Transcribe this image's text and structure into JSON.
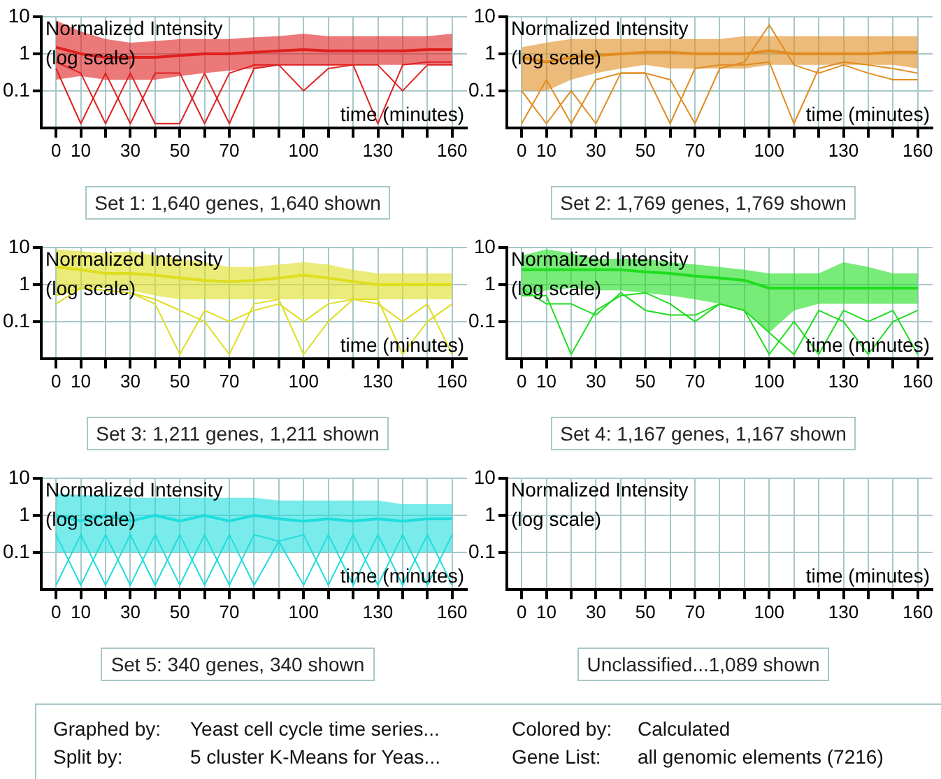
{
  "chart_data": [
    {
      "type": "line",
      "title": "Set 1: 1,640 genes, 1,640 shown",
      "xlabel": "time (minutes)",
      "ylabel": "Normalized Intensity (log scale)",
      "log": true,
      "grid": true,
      "x": [
        0,
        10,
        20,
        30,
        40,
        50,
        60,
        70,
        80,
        90,
        100,
        110,
        120,
        130,
        140,
        150,
        160
      ],
      "xlim": [
        -6,
        166
      ],
      "xticks": [
        0,
        10,
        {
          "value": 20,
          "label": null
        },
        30,
        {
          "value": 40,
          "label": null
        },
        50,
        {
          "value": 60,
          "label": null
        },
        70,
        {
          "value": 80,
          "label": null
        },
        {
          "value": 90,
          "label": null
        },
        100,
        {
          "value": 110,
          "label": null
        },
        {
          "value": 120,
          "label": null
        },
        130,
        {
          "value": 140,
          "label": null
        },
        {
          "value": 150,
          "label": null
        },
        160
      ],
      "ylim": [
        0.01,
        10
      ],
      "yticks": [
        0.1,
        1,
        10
      ],
      "series": [
        {
          "color": "#e02020",
          "values": [
            1.5,
            1,
            0.8,
            0.8,
            0.8,
            0.9,
            1,
            1,
            1.1,
            1.2,
            1.3,
            1.2,
            1.2,
            1.2,
            1.2,
            1.3,
            1.3
          ],
          "lower": [
            0.2,
            0.25,
            0.2,
            0.2,
            0.2,
            0.25,
            0.3,
            0.35,
            0.4,
            0.5,
            0.5,
            0.5,
            0.5,
            0.5,
            0.5,
            0.5,
            0.5
          ],
          "upper": [
            8,
            4,
            2.5,
            2,
            2.2,
            2.5,
            2.5,
            2.5,
            2.8,
            3,
            3.5,
            3,
            3,
            3,
            3,
            3,
            3.5
          ]
        },
        {
          "color": "#e02020",
          "values": [
            0.4,
            0.013,
            0.3,
            0.013,
            0.3,
            0.3,
            0.013,
            0.3,
            0.5,
            0.5,
            0.5,
            0.5,
            0.5,
            0.013,
            0.5,
            0.6,
            0.6
          ]
        },
        {
          "color": "#e02020",
          "values": [
            0.6,
            0.3,
            0.013,
            0.3,
            0.013,
            0.013,
            0.3,
            0.013,
            0.4,
            0.5,
            0.1,
            0.4,
            0.5,
            0.5,
            0.1,
            0.5,
            0.5
          ]
        }
      ]
    },
    {
      "type": "line",
      "title": "Set 2: 1,769 genes, 1,769 shown",
      "xlabel": "time (minutes)",
      "ylabel": "Normalized Intensity (log scale)",
      "log": true,
      "grid": true,
      "x": [
        0,
        10,
        20,
        30,
        40,
        50,
        60,
        70,
        80,
        90,
        100,
        110,
        120,
        130,
        140,
        150,
        160
      ],
      "xlim": [
        -6,
        166
      ],
      "xticks": [
        0,
        10,
        {
          "value": 20,
          "label": null
        },
        30,
        {
          "value": 40,
          "label": null
        },
        50,
        {
          "value": 60,
          "label": null
        },
        70,
        {
          "value": 80,
          "label": null
        },
        {
          "value": 90,
          "label": null
        },
        100,
        {
          "value": 110,
          "label": null
        },
        {
          "value": 120,
          "label": null
        },
        130,
        {
          "value": 140,
          "label": null
        },
        {
          "value": 150,
          "label": null
        },
        160
      ],
      "ylim": [
        0.01,
        10
      ],
      "yticks": [
        0.1,
        1,
        10
      ],
      "series": [
        {
          "color": "#e08c20",
          "values": [
            0.8,
            0.6,
            0.8,
            0.9,
            1,
            1.1,
            1.1,
            1,
            1,
            1,
            1.2,
            1,
            1,
            1,
            1,
            1.1,
            1.1
          ],
          "lower": [
            0.1,
            0.1,
            0.2,
            0.3,
            0.4,
            0.5,
            0.4,
            0.4,
            0.4,
            0.4,
            0.5,
            0.5,
            0.5,
            0.5,
            0.5,
            0.5,
            0.4
          ],
          "upper": [
            1.5,
            2,
            2.5,
            2.5,
            2.5,
            2.5,
            2.5,
            2.5,
            2.5,
            3,
            3,
            3,
            3,
            3,
            3,
            3,
            3
          ]
        },
        {
          "color": "#e08c20",
          "values": [
            0.013,
            0.2,
            0.013,
            0.2,
            0.3,
            0.3,
            0.013,
            0.4,
            0.5,
            0.5,
            0.6,
            0.013,
            0.4,
            0.6,
            0.5,
            0.4,
            0.3
          ]
        },
        {
          "color": "#e08c20",
          "values": [
            0.1,
            0.013,
            0.1,
            0.013,
            0.3,
            0.3,
            0.2,
            0.013,
            0.4,
            0.6,
            6,
            0.5,
            0.3,
            0.5,
            0.3,
            0.2,
            0.2
          ]
        }
      ]
    },
    {
      "type": "line",
      "title": "Set 3: 1,211 genes, 1,211 shown",
      "xlabel": "time (minutes)",
      "ylabel": "Normalized Intensity (log scale)",
      "log": true,
      "grid": true,
      "x": [
        0,
        10,
        20,
        30,
        40,
        50,
        60,
        70,
        80,
        90,
        100,
        110,
        120,
        130,
        140,
        150,
        160
      ],
      "xlim": [
        -6,
        166
      ],
      "xticks": [
        0,
        10,
        {
          "value": 20,
          "label": null
        },
        30,
        {
          "value": 40,
          "label": null
        },
        50,
        {
          "value": 60,
          "label": null
        },
        70,
        {
          "value": 80,
          "label": null
        },
        {
          "value": 90,
          "label": null
        },
        100,
        {
          "value": 110,
          "label": null
        },
        {
          "value": 120,
          "label": null
        },
        130,
        {
          "value": 140,
          "label": null
        },
        {
          "value": 150,
          "label": null
        },
        160
      ],
      "ylim": [
        0.01,
        10
      ],
      "yticks": [
        0.1,
        1,
        10
      ],
      "series": [
        {
          "color": "#dede20",
          "values": [
            3,
            2.5,
            2,
            2,
            1.8,
            1.5,
            1.3,
            1.2,
            1.3,
            1.5,
            1.8,
            1.5,
            1.2,
            1,
            1,
            1,
            1
          ],
          "lower": [
            0.5,
            0.8,
            0.8,
            0.7,
            0.5,
            0.4,
            0.4,
            0.4,
            0.4,
            0.4,
            0.4,
            0.4,
            0.4,
            0.4,
            0.4,
            0.4,
            0.4
          ],
          "upper": [
            9,
            8,
            7,
            8,
            6,
            5,
            4,
            3,
            3,
            3.5,
            4,
            3.5,
            2.5,
            2,
            2,
            2,
            2
          ]
        },
        {
          "color": "#dede20",
          "values": [
            0.3,
            0.8,
            0.7,
            0.6,
            0.3,
            0.013,
            0.2,
            0.1,
            0.2,
            0.3,
            0.1,
            0.3,
            0.4,
            0.3,
            0.1,
            0.3,
            0.013
          ]
        },
        {
          "color": "#dede20",
          "values": [
            0.5,
            0.8,
            0.7,
            0.6,
            0.4,
            0.2,
            0.1,
            0.013,
            0.3,
            0.4,
            0.013,
            0.1,
            0.4,
            0.4,
            0.013,
            0.1,
            0.3
          ]
        }
      ]
    },
    {
      "type": "line",
      "title": "Set 4: 1,167 genes, 1,167 shown",
      "xlabel": "time (minutes)",
      "ylabel": "Normalized Intensity (log scale)",
      "log": true,
      "grid": true,
      "x": [
        0,
        10,
        20,
        30,
        40,
        50,
        60,
        70,
        80,
        90,
        100,
        110,
        120,
        130,
        140,
        150,
        160
      ],
      "xlim": [
        -6,
        166
      ],
      "xticks": [
        0,
        10,
        {
          "value": 20,
          "label": null
        },
        30,
        {
          "value": 40,
          "label": null
        },
        50,
        {
          "value": 60,
          "label": null
        },
        70,
        {
          "value": 80,
          "label": null
        },
        {
          "value": 90,
          "label": null
        },
        100,
        {
          "value": 110,
          "label": null
        },
        {
          "value": 120,
          "label": null
        },
        130,
        {
          "value": 140,
          "label": null
        },
        {
          "value": 150,
          "label": null
        },
        160
      ],
      "ylim": [
        0.01,
        10
      ],
      "yticks": [
        0.1,
        1,
        10
      ],
      "series": [
        {
          "color": "#20dd20",
          "values": [
            2.5,
            2.5,
            2.5,
            2.5,
            2.5,
            2.2,
            2,
            1.7,
            1.5,
            1.3,
            0.8,
            0.8,
            0.8,
            0.8,
            0.8,
            0.8,
            0.8
          ],
          "lower": [
            0.5,
            0.7,
            0.8,
            0.7,
            0.7,
            0.6,
            0.5,
            0.4,
            0.3,
            0.2,
            0.05,
            0.2,
            0.3,
            0.3,
            0.3,
            0.3,
            0.3
          ],
          "upper": [
            6,
            9,
            7,
            5,
            5,
            5,
            4,
            3.5,
            3,
            2.5,
            2,
            2,
            2,
            4,
            3,
            2,
            2
          ]
        },
        {
          "color": "#20dd20",
          "values": [
            0.5,
            0.5,
            0.013,
            0.2,
            0.5,
            0.6,
            0.3,
            0.1,
            0.3,
            0.2,
            0.013,
            0.1,
            0.013,
            0.2,
            0.1,
            0.2,
            0.013
          ]
        },
        {
          "color": "#20dd20",
          "values": [
            0.8,
            0.3,
            0.3,
            0.15,
            0.6,
            0.2,
            0.15,
            0.15,
            0.3,
            0.2,
            0.05,
            0.013,
            0.2,
            0.1,
            0.013,
            0.1,
            0.2
          ]
        }
      ]
    },
    {
      "type": "line",
      "title": "Set 5: 340 genes, 340 shown",
      "xlabel": "time (minutes)",
      "ylabel": "Normalized Intensity (log scale)",
      "log": true,
      "grid": true,
      "x": [
        0,
        10,
        20,
        30,
        40,
        50,
        60,
        70,
        80,
        90,
        100,
        110,
        120,
        130,
        140,
        150,
        160
      ],
      "xlim": [
        -6,
        166
      ],
      "xticks": [
        0,
        10,
        {
          "value": 20,
          "label": null
        },
        30,
        {
          "value": 40,
          "label": null
        },
        50,
        {
          "value": 60,
          "label": null
        },
        70,
        {
          "value": 80,
          "label": null
        },
        {
          "value": 90,
          "label": null
        },
        100,
        {
          "value": 110,
          "label": null
        },
        {
          "value": 120,
          "label": null
        },
        130,
        {
          "value": 140,
          "label": null
        },
        {
          "value": 150,
          "label": null
        },
        160
      ],
      "ylim": [
        0.01,
        10
      ],
      "yticks": [
        0.1,
        1,
        10
      ],
      "series": [
        {
          "color": "#20dddd",
          "values": [
            1,
            0.7,
            1,
            0.7,
            1,
            0.7,
            1,
            0.7,
            1,
            0.8,
            0.7,
            0.8,
            0.7,
            0.8,
            0.7,
            0.8,
            0.8
          ],
          "lower": [
            0.1,
            0.1,
            0.1,
            0.1,
            0.1,
            0.1,
            0.1,
            0.1,
            0.1,
            0.1,
            0.1,
            0.1,
            0.1,
            0.1,
            0.1,
            0.1,
            0.1
          ],
          "upper": [
            4,
            3.5,
            3.5,
            3,
            3,
            3,
            3,
            3,
            3,
            2.5,
            2.5,
            2.5,
            2.5,
            2.5,
            2,
            2,
            2
          ]
        },
        {
          "color": "#20dddd",
          "values": [
            0.013,
            0.3,
            0.013,
            0.3,
            0.013,
            0.3,
            0.013,
            0.3,
            0.013,
            0.2,
            0.013,
            0.3,
            0.013,
            0.3,
            0.013,
            0.3,
            0.013
          ]
        },
        {
          "color": "#20dddd",
          "values": [
            0.3,
            0.013,
            0.3,
            0.013,
            0.3,
            0.013,
            0.3,
            0.013,
            0.3,
            0.2,
            0.3,
            0.013,
            0.3,
            0.013,
            0.3,
            0.013,
            0.3
          ]
        }
      ]
    },
    {
      "type": "line",
      "title": "Unclassified...1,089 shown",
      "xlabel": "time (minutes)",
      "ylabel": "Normalized Intensity (log scale)",
      "log": true,
      "grid": true,
      "xlim": [
        -6,
        166
      ],
      "xticks": [
        0,
        10,
        {
          "value": 20,
          "label": null
        },
        30,
        {
          "value": 40,
          "label": null
        },
        50,
        {
          "value": 60,
          "label": null
        },
        70,
        {
          "value": 80,
          "label": null
        },
        {
          "value": 90,
          "label": null
        },
        100,
        {
          "value": 110,
          "label": null
        },
        {
          "value": 120,
          "label": null
        },
        130,
        {
          "value": 140,
          "label": null
        },
        {
          "value": 150,
          "label": null
        },
        160
      ],
      "ylim": [
        0.01,
        10
      ],
      "yticks": [
        0.1,
        1,
        10
      ]
    },
    {
      "type": "other",
      "annotations": [
        "Graphed by:",
        "Yeast cell cycle time series...",
        "Colored by:",
        "Calculated",
        "Split by:",
        "5 cluster K-Means for Yeas...",
        "Gene List:",
        "all genomic elements (7216)"
      ]
    }
  ]
}
